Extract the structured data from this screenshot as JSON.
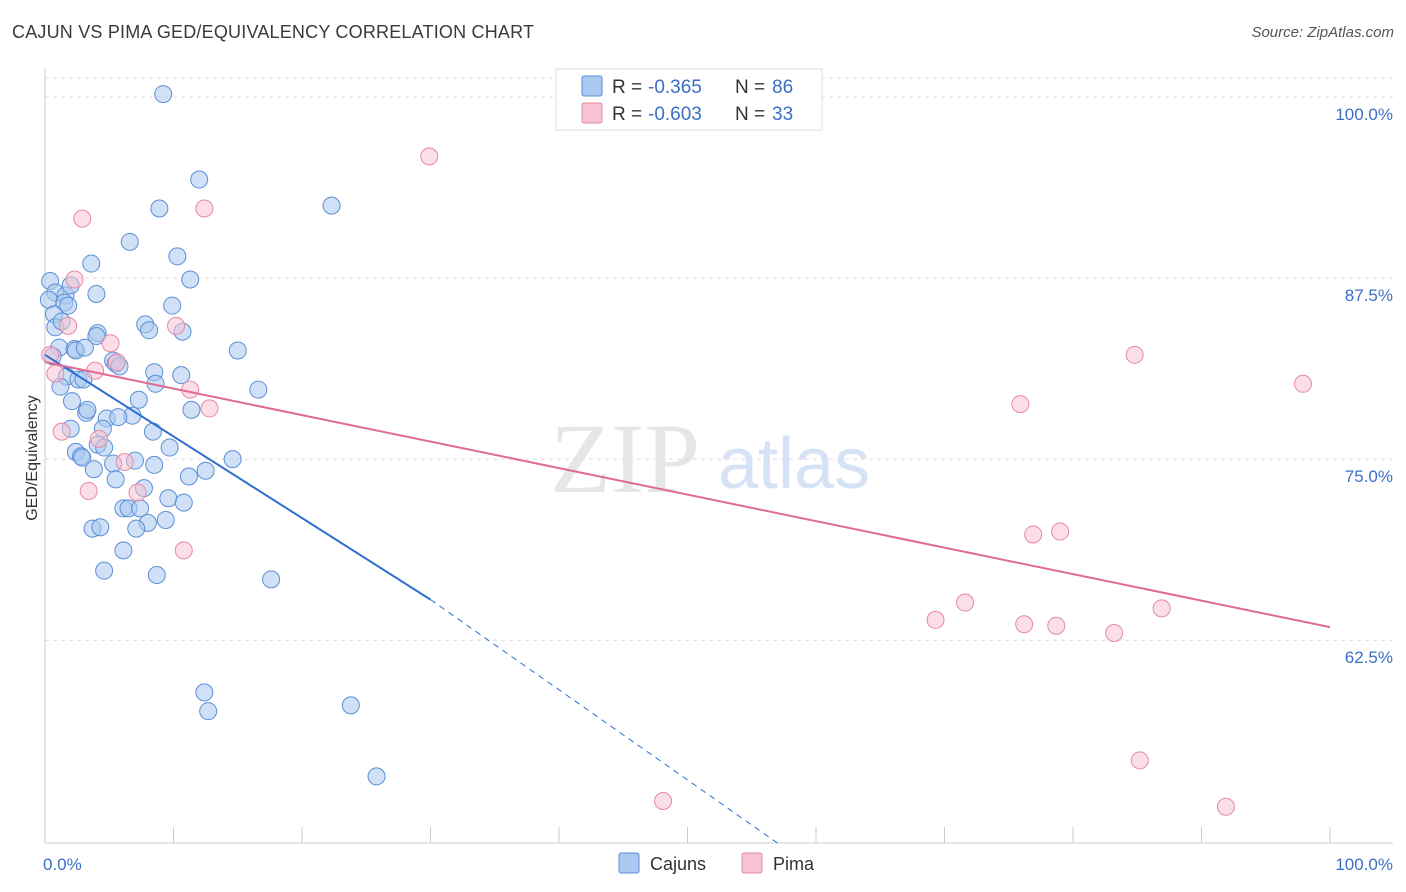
{
  "title": "CAJUN VS PIMA GED/EQUIVALENCY CORRELATION CHART",
  "source": "Source: ZipAtlas.com",
  "watermark": {
    "zip": "ZIP",
    "atlas": "atlas"
  },
  "colors": {
    "cajuns_fill": "#aac8f0",
    "cajuns_stroke": "#5b8fd6",
    "cajuns_line": "#2e6fd0",
    "pima_fill": "#f7c2d2",
    "pima_stroke": "#e58aa6",
    "pima_line": "#e06a92",
    "grid": "#dddddd",
    "tick_text": "#3a6fc7"
  },
  "legend_top": [
    {
      "series": "cajuns",
      "r_label": "R = ",
      "r_value": "-0.365",
      "n_label": "N = ",
      "n_value": "86"
    },
    {
      "series": "pima",
      "r_label": "R = ",
      "r_value": "-0.603",
      "n_label": "N = ",
      "n_value": "33"
    }
  ],
  "chart_data": {
    "type": "scatter",
    "xlabel": "",
    "ylabel": "GED/Equivalency",
    "xlim": [
      0,
      100
    ],
    "ylim": [
      48.5,
      102
    ],
    "x_tick_labels": [
      "0.0%",
      "100.0%"
    ],
    "y_ticks": [
      62.5,
      75.0,
      87.5,
      100.0
    ],
    "y_tick_labels": [
      "62.5%",
      "75.0%",
      "87.5%",
      "100.0%"
    ],
    "grid": true,
    "legend": [
      "Cajuns",
      "Pima"
    ],
    "series": [
      {
        "name": "Cajuns",
        "trend": {
          "x0": 0,
          "y0": 82.2,
          "x1": 30,
          "y1": 65.3,
          "dash_to_x": 57,
          "dash_to_y": 48.5
        },
        "points": [
          [
            9.2,
            100.2
          ],
          [
            12.0,
            94.3
          ],
          [
            8.9,
            92.3
          ],
          [
            22.3,
            92.5
          ],
          [
            6.6,
            90.0
          ],
          [
            10.3,
            89.0
          ],
          [
            3.6,
            88.5
          ],
          [
            0.4,
            87.3
          ],
          [
            11.3,
            87.4
          ],
          [
            0.8,
            86.5
          ],
          [
            1.6,
            86.3
          ],
          [
            4.0,
            86.4
          ],
          [
            0.3,
            86.0
          ],
          [
            1.5,
            85.8
          ],
          [
            1.8,
            85.6
          ],
          [
            9.9,
            85.6
          ],
          [
            0.7,
            85.0
          ],
          [
            7.8,
            84.3
          ],
          [
            8.1,
            83.9
          ],
          [
            4.1,
            83.7
          ],
          [
            10.7,
            83.8
          ],
          [
            4.0,
            83.5
          ],
          [
            0.8,
            84.1
          ],
          [
            1.1,
            82.7
          ],
          [
            2.3,
            82.6
          ],
          [
            2.4,
            82.5
          ],
          [
            15.0,
            82.5
          ],
          [
            0.6,
            82.1
          ],
          [
            5.3,
            81.8
          ],
          [
            5.5,
            81.6
          ],
          [
            5.8,
            81.4
          ],
          [
            8.5,
            81.0
          ],
          [
            10.6,
            80.8
          ],
          [
            1.7,
            80.7
          ],
          [
            2.6,
            80.5
          ],
          [
            3.0,
            80.5
          ],
          [
            1.2,
            80.0
          ],
          [
            8.6,
            80.2
          ],
          [
            16.6,
            79.8
          ],
          [
            2.1,
            79.0
          ],
          [
            11.4,
            78.4
          ],
          [
            3.2,
            78.2
          ],
          [
            3.3,
            78.4
          ],
          [
            6.8,
            78.0
          ],
          [
            4.8,
            77.8
          ],
          [
            5.7,
            77.9
          ],
          [
            2.0,
            77.1
          ],
          [
            4.5,
            77.1
          ],
          [
            8.4,
            76.9
          ],
          [
            4.1,
            76.0
          ],
          [
            9.7,
            75.8
          ],
          [
            2.4,
            75.5
          ],
          [
            2.8,
            75.2
          ],
          [
            2.9,
            75.1
          ],
          [
            4.6,
            75.8
          ],
          [
            7.0,
            74.9
          ],
          [
            5.3,
            74.7
          ],
          [
            8.5,
            74.6
          ],
          [
            14.6,
            75.0
          ],
          [
            3.8,
            74.3
          ],
          [
            12.5,
            74.2
          ],
          [
            11.2,
            73.8
          ],
          [
            5.5,
            73.6
          ],
          [
            7.7,
            73.0
          ],
          [
            9.6,
            72.3
          ],
          [
            10.8,
            72.0
          ],
          [
            6.1,
            71.6
          ],
          [
            6.5,
            71.6
          ],
          [
            7.4,
            71.6
          ],
          [
            8.0,
            70.6
          ],
          [
            9.4,
            70.8
          ],
          [
            3.7,
            70.2
          ],
          [
            4.3,
            70.3
          ],
          [
            7.1,
            70.2
          ],
          [
            6.1,
            68.7
          ],
          [
            4.6,
            67.3
          ],
          [
            8.7,
            67.0
          ],
          [
            17.6,
            66.7
          ],
          [
            12.4,
            58.9
          ],
          [
            12.7,
            57.6
          ],
          [
            23.8,
            58.0
          ],
          [
            25.8,
            53.1
          ],
          [
            2.0,
            87.0
          ],
          [
            1.3,
            84.5
          ],
          [
            3.1,
            82.7
          ],
          [
            7.3,
            79.1
          ]
        ]
      },
      {
        "name": "Pima",
        "trend": {
          "x0": 0,
          "y0": 81.7,
          "x1": 100,
          "y1": 63.4
        },
        "points": [
          [
            29.9,
            95.9
          ],
          [
            12.4,
            92.3
          ],
          [
            2.9,
            91.6
          ],
          [
            2.3,
            87.4
          ],
          [
            1.8,
            84.2
          ],
          [
            10.2,
            84.2
          ],
          [
            5.1,
            83.0
          ],
          [
            3.9,
            81.1
          ],
          [
            0.4,
            82.2
          ],
          [
            0.8,
            80.9
          ],
          [
            11.3,
            79.8
          ],
          [
            5.6,
            81.7
          ],
          [
            12.8,
            78.5
          ],
          [
            75.9,
            78.8
          ],
          [
            84.8,
            82.2
          ],
          [
            97.9,
            80.2
          ],
          [
            1.3,
            76.9
          ],
          [
            4.2,
            76.4
          ],
          [
            6.2,
            74.8
          ],
          [
            3.4,
            72.8
          ],
          [
            7.2,
            72.7
          ],
          [
            10.8,
            68.7
          ],
          [
            76.9,
            69.8
          ],
          [
            79.0,
            70.0
          ],
          [
            71.6,
            65.1
          ],
          [
            69.3,
            63.9
          ],
          [
            76.2,
            63.6
          ],
          [
            78.7,
            63.5
          ],
          [
            83.2,
            63.0
          ],
          [
            86.9,
            64.7
          ],
          [
            85.2,
            54.2
          ],
          [
            48.1,
            51.4
          ],
          [
            91.9,
            51.0
          ]
        ]
      }
    ]
  }
}
